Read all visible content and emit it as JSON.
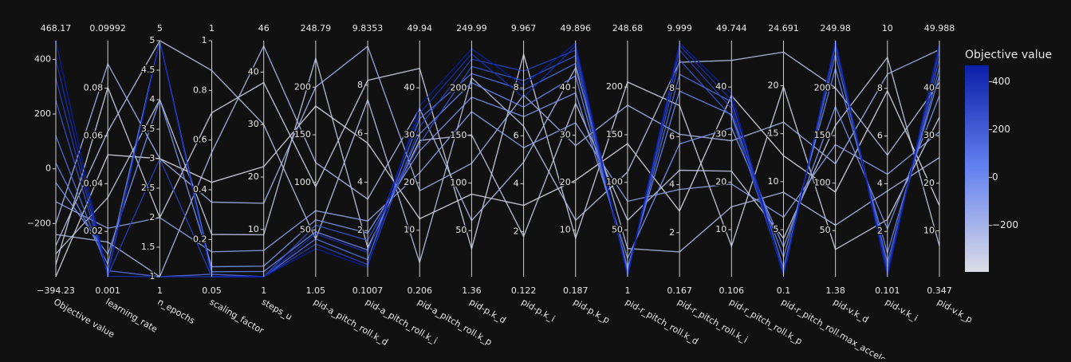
{
  "chart_data": {
    "type": "parcoords",
    "dimensions": [
      {
        "label": "Objective value",
        "range": [
          {
            "value": -394.23,
            "label": "−394.23"
          },
          468.17
        ],
        "ticks": [
          {
            "value": -200,
            "label": "−200"
          },
          0,
          200,
          400
        ]
      },
      {
        "label": "learning_rate",
        "range": [
          0.001,
          0.09992
        ],
        "ticks": [
          0.02,
          0.04,
          0.06,
          0.08
        ]
      },
      {
        "label": "n_epochs",
        "range": [
          1,
          5
        ],
        "ticks": [
          1,
          1.5,
          2,
          2.5,
          3,
          3.5,
          4,
          4.5,
          5
        ]
      },
      {
        "label": "scaling_factor",
        "range": [
          0.05,
          1
        ],
        "ticks": [
          0.2,
          0.4,
          0.6,
          0.8,
          1
        ]
      },
      {
        "label": "steps_u",
        "range": [
          1,
          46
        ],
        "ticks": [
          10,
          20,
          30,
          40
        ]
      },
      {
        "label": "pid-a_pitch_roll.k_d",
        "range": [
          1.05,
          248.79
        ],
        "ticks": [
          50,
          100,
          150,
          200
        ]
      },
      {
        "label": "pid-a_pitch_roll.k_i",
        "range": [
          0.1007,
          9.8353
        ],
        "ticks": [
          2,
          4,
          6,
          8
        ]
      },
      {
        "label": "pid-a_pitch_roll.k_p",
        "range": [
          0.206,
          49.94
        ],
        "ticks": [
          10,
          20,
          30,
          40
        ]
      },
      {
        "label": "pid-p.k_d",
        "range": [
          1.36,
          249.99
        ],
        "ticks": [
          50,
          100,
          150,
          200
        ]
      },
      {
        "label": "pid-p.k_i",
        "range": [
          0.122,
          9.967
        ],
        "ticks": [
          2,
          4,
          6,
          8
        ]
      },
      {
        "label": "pid-p.k_p",
        "range": [
          0.187,
          49.896
        ],
        "ticks": [
          10,
          20,
          30,
          40
        ]
      },
      {
        "label": "pid-r_pitch_roll.k_d",
        "range": [
          1,
          248.68
        ],
        "ticks": [
          50,
          100,
          150,
          200
        ]
      },
      {
        "label": "pid-r_pitch_roll.k_i",
        "range": [
          0.167,
          9.999
        ],
        "ticks": [
          2,
          4,
          6,
          8
        ]
      },
      {
        "label": "pid-r_pitch_roll.k_p",
        "range": [
          0.106,
          49.744
        ],
        "ticks": [
          10,
          20,
          30,
          40
        ]
      },
      {
        "label": "pid-r_pitch_roll.max_acceleration",
        "range": [
          0.1,
          24.691
        ],
        "ticks": [
          5,
          10,
          15,
          20
        ]
      },
      {
        "label": "pid-v.k_d",
        "range": [
          1.38,
          249.98
        ],
        "ticks": [
          50,
          100,
          150,
          200
        ]
      },
      {
        "label": "pid-v.k_i",
        "range": [
          0.101,
          10
        ],
        "ticks": [
          2,
          4,
          6,
          8
        ]
      },
      {
        "label": "pid-v.k_p",
        "range": [
          0.347,
          49.988
        ],
        "ticks": [
          10,
          20,
          30,
          40
        ]
      }
    ],
    "lines": [
      [
        -394.23,
        0.0521,
        3,
        0.43,
        22,
        180.2,
        5.61,
        12.4,
        88.3,
        3.1,
        20.5,
        140.6,
        2.9,
        38.2,
        12.7,
        90.4,
        7.9,
        15.3
      ],
      [
        -350.1,
        0.0803,
        2,
        0.71,
        38,
        95.6,
        8.2,
        44.1,
        30.7,
        9.4,
        8.3,
        205.3,
        7.3,
        6.5,
        19.9,
        30.1,
        2.5,
        33.9
      ],
      [
        -310.5,
        0.0342,
        4,
        0.22,
        9,
        230.4,
        1.3,
        28.9,
        150.8,
        1.8,
        36.7,
        60.2,
        4.6,
        22.3,
        4.1,
        160.7,
        9.3,
        6.8
      ],
      [
        -280.7,
        0.0618,
        5,
        0.88,
        30,
        40.5,
        7.4,
        3.2,
        210.9,
        6.4,
        12.1,
        110.8,
        9.1,
        45.6,
        23.5,
        200.3,
        5.2,
        41.2
      ],
      [
        -240.2,
        0.0155,
        1,
        0.55,
        45,
        120.7,
        3.3,
        35.6,
        60.4,
        4.9,
        44.2,
        30.5,
        1.2,
        14.8,
        8.9,
        55.6,
        3.7,
        25.4
      ],
      [
        -200.6,
        0.0902,
        3,
        0.35,
        15,
        200.1,
        9.6,
        18.3,
        120.6,
        7.7,
        27.8,
        180.9,
        6.1,
        28.7,
        16.2,
        120.3,
        8.6,
        48.1
      ],
      [
        -120.4,
        0.0213,
        2,
        0.15,
        6,
        70.3,
        2.4,
        22.1,
        175.2,
        5.5,
        32.6,
        80.1,
        3.8,
        19.6,
        6.3,
        140.5,
        4.4,
        30.8
      ],
      [
        -50.8,
        0.0104,
        4,
        0.09,
        3,
        60.8,
        1.9,
        26.7,
        190.4,
        6.8,
        38.9,
        20.3,
        5.7,
        31.4,
        3.2,
        180.6,
        2.1,
        38.4
      ],
      [
        20.3,
        0.0062,
        5,
        0.07,
        2,
        48.2,
        1.2,
        30.3,
        205.7,
        7.2,
        42.5,
        10.6,
        7.9,
        34.2,
        2.1,
        220.8,
        1.1,
        42.6
      ],
      [
        120.7,
        0.0035,
        1,
        0.06,
        1,
        40.6,
        0.8,
        33.5,
        215.3,
        7.9,
        45.1,
        6.2,
        8.6,
        36.9,
        1.0,
        235.4,
        0.7,
        44.3
      ],
      [
        250.3,
        0.0021,
        5,
        0.05,
        1,
        55.1,
        1.6,
        28.2,
        222.8,
        8.3,
        46.7,
        3.4,
        9.2,
        33.8,
        0.6,
        244.1,
        0.5,
        46.2
      ],
      [
        330.9,
        0.0015,
        3,
        0.05,
        1,
        35.2,
        0.6,
        31.8,
        230.6,
        8.7,
        47.9,
        2.1,
        9.6,
        35.5,
        0.4,
        247.3,
        0.3,
        47.8
      ],
      [
        400.2,
        0.0012,
        1,
        0.05,
        1,
        45.9,
        1.1,
        34.6,
        236.1,
        7.6,
        48.8,
        1.6,
        9.8,
        37.2,
        0.2,
        248.9,
        0.2,
        48.9
      ],
      [
        468.17,
        0.001,
        5,
        0.05,
        1,
        30.4,
        0.5,
        36.2,
        241.3,
        8.1,
        49.4,
        1.2,
        9.9,
        38.6,
        0.1,
        249.98,
        0.101,
        49.5
      ]
    ],
    "colorscale": [
      "#dcdce6",
      "#6482f0",
      "#0a1ea8"
    ],
    "colorbar": {
      "title": "Objective value",
      "ticks": [
        {
          "value": -200,
          "label": "−200"
        },
        0,
        200,
        400
      ]
    }
  }
}
